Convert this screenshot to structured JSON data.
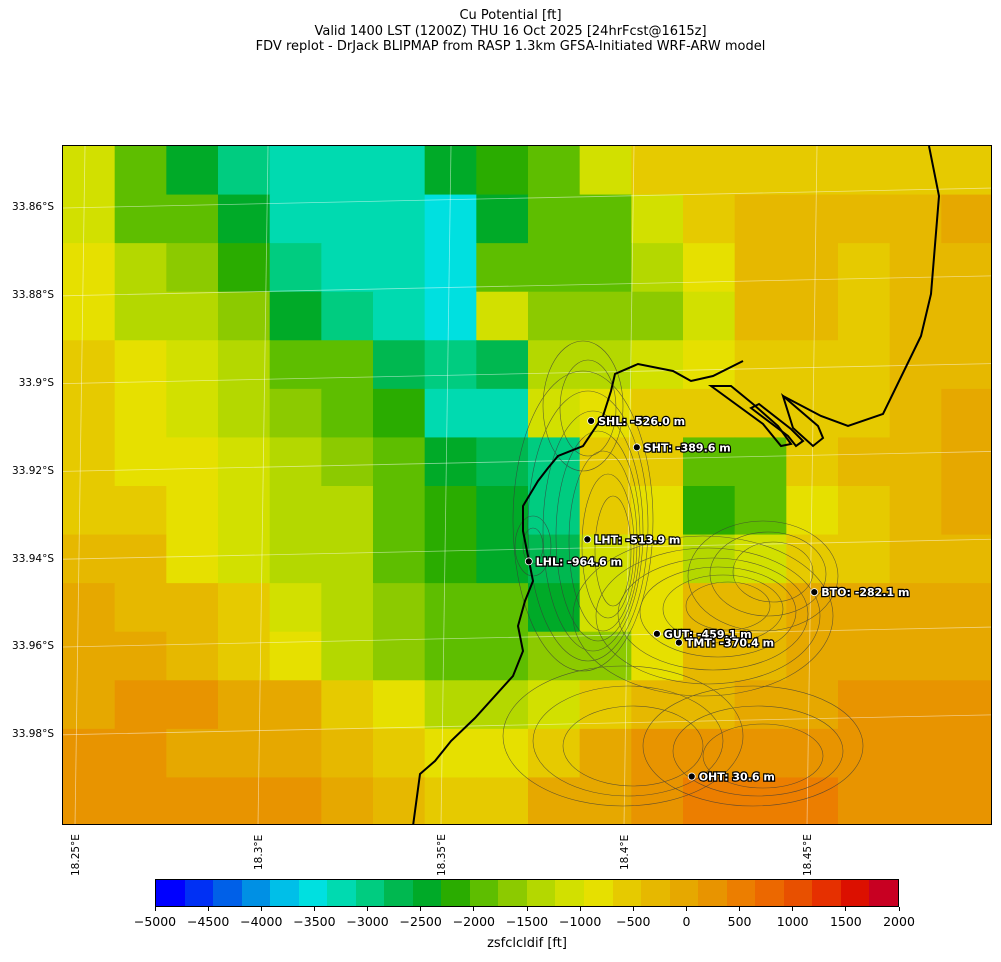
{
  "title": {
    "line1": "Cu Potential [ft]",
    "line2": "Valid 1400 LST (1200Z) THU 16 Oct 2025 [24hrFcst@1615z]",
    "line3": "FDV replot - DrJack BLIPMAP from RASP 1.3km GFSA-Initiated WRF-ARW model"
  },
  "map": {
    "lat_labels": [
      "33.86°S",
      "33.88°S",
      "33.9°S",
      "33.92°S",
      "33.94°S",
      "33.96°S",
      "33.98°S"
    ],
    "lon_labels": [
      "18.25°E",
      "18.3°E",
      "18.35°E",
      "18.4°E",
      "18.45°E"
    ],
    "stations": [
      {
        "label": "SHL: -526.0 m",
        "lon": 18.391,
        "lat": -33.9085
      },
      {
        "label": "SHT: -389.6 m",
        "lon": 18.4035,
        "lat": -33.9145
      },
      {
        "label": "LHT: -513.9 m",
        "lon": 18.39,
        "lat": -33.9355
      },
      {
        "label": "LHL: -964.6 m",
        "lon": 18.374,
        "lat": -33.9405
      },
      {
        "label": "BTO: -282.1 m",
        "lon": 18.452,
        "lat": -33.9475
      },
      {
        "label": "GUT: -459.1 m",
        "lon": 18.409,
        "lat": -33.957
      },
      {
        "label": "TMT: -370.4 m",
        "lon": 18.415,
        "lat": -33.959
      },
      {
        "label": "OHT: 30.6 m",
        "lon": 18.4185,
        "lat": -33.9895
      }
    ],
    "grid_values_ft": [
      [
        -1500,
        -2250,
        -2750,
        -3250,
        -3500,
        -3500,
        -3500,
        -2750,
        -2500,
        -2250,
        -1500,
        -1000,
        -1000,
        -1000,
        -1000,
        -1000,
        -1000,
        -1000
      ],
      [
        -1500,
        -2250,
        -2250,
        -2750,
        -3500,
        -3500,
        -3500,
        -3750,
        -2750,
        -2250,
        -2250,
        -1500,
        -1000,
        -750,
        -750,
        -750,
        -750,
        -500
      ],
      [
        -1250,
        -1750,
        -2000,
        -2500,
        -3250,
        -3500,
        -3500,
        -3750,
        -2250,
        -2250,
        -2250,
        -1750,
        -1250,
        -750,
        -750,
        -1000,
        -750,
        -750
      ],
      [
        -1250,
        -1750,
        -1750,
        -2000,
        -2750,
        -3250,
        -3500,
        -3750,
        -1500,
        -2000,
        -2000,
        -2000,
        -1500,
        -750,
        -750,
        -1000,
        -750,
        -750
      ],
      [
        -1000,
        -1250,
        -1500,
        -1750,
        -2250,
        -2250,
        -3000,
        -3250,
        -3000,
        -1750,
        -1750,
        -1500,
        -1250,
        -1000,
        -1000,
        -1000,
        -750,
        -750
      ],
      [
        -1000,
        -1250,
        -1500,
        -1750,
        -2000,
        -2250,
        -2500,
        -3500,
        -3500,
        -1500,
        -1250,
        -1000,
        -1000,
        -1000,
        -1000,
        -1000,
        -750,
        -500
      ],
      [
        -1000,
        -1250,
        -1250,
        -1500,
        -1750,
        -2000,
        -2250,
        -2750,
        -3000,
        -3250,
        -1000,
        -1000,
        -2250,
        -2250,
        -1000,
        -750,
        -750,
        -500
      ],
      [
        -1000,
        -1000,
        -1250,
        -1500,
        -1750,
        -1750,
        -2250,
        -2500,
        -2750,
        -3250,
        -1000,
        -1250,
        -2500,
        -2250,
        -1250,
        -1000,
        -750,
        -500
      ],
      [
        -750,
        -750,
        -1250,
        -1500,
        -1750,
        -1750,
        -2250,
        -2500,
        -2750,
        -3000,
        -1500,
        -1250,
        -1750,
        -1500,
        -1000,
        -1000,
        -750,
        -750
      ],
      [
        -500,
        -750,
        -750,
        -1000,
        -1500,
        -1750,
        -2000,
        -2250,
        -2250,
        -2750,
        -1500,
        -1250,
        -750,
        -750,
        -500,
        -500,
        -500,
        -500
      ],
      [
        -500,
        -500,
        -750,
        -1000,
        -1250,
        -1750,
        -2000,
        -2250,
        -2250,
        -2000,
        -2000,
        -1250,
        -750,
        -750,
        -500,
        -500,
        -500,
        -500
      ],
      [
        -500,
        -250,
        -250,
        -500,
        -500,
        -1000,
        -1250,
        -1750,
        -1750,
        -1500,
        -1000,
        -750,
        -750,
        -500,
        -500,
        -250,
        -250,
        -250
      ],
      [
        -250,
        -250,
        -500,
        -500,
        -500,
        -750,
        -1000,
        -1250,
        -1250,
        -1000,
        -500,
        -250,
        -250,
        -250,
        -250,
        -250,
        -250,
        -250
      ],
      [
        -250,
        -250,
        -250,
        -250,
        -250,
        -500,
        -750,
        -1000,
        -1000,
        -500,
        -500,
        -250,
        0,
        0,
        0,
        -250,
        -250,
        -250
      ]
    ]
  },
  "colorbar": {
    "label": "zsfclcldif [ft]",
    "tick_labels": [
      "−5000",
      "−4500",
      "−4000",
      "−3500",
      "−3000",
      "−2500",
      "−2000",
      "−1500",
      "−1000",
      "−500",
      "0",
      "500",
      "1000",
      "1500",
      "2000"
    ],
    "colors": [
      "#0000ff",
      "#0030f4",
      "#0060e8",
      "#0090e4",
      "#00bfe8",
      "#00e0e0",
      "#00dab0",
      "#00cc80",
      "#00b850",
      "#00aa28",
      "#2aac00",
      "#5ebe00",
      "#8cca00",
      "#b4d800",
      "#d2e000",
      "#e6e000",
      "#e6ca00",
      "#e6b800",
      "#e6a800",
      "#e89400",
      "#ec7e00",
      "#ec6800",
      "#e85000",
      "#e63000",
      "#dc1000",
      "#c80022"
    ]
  }
}
